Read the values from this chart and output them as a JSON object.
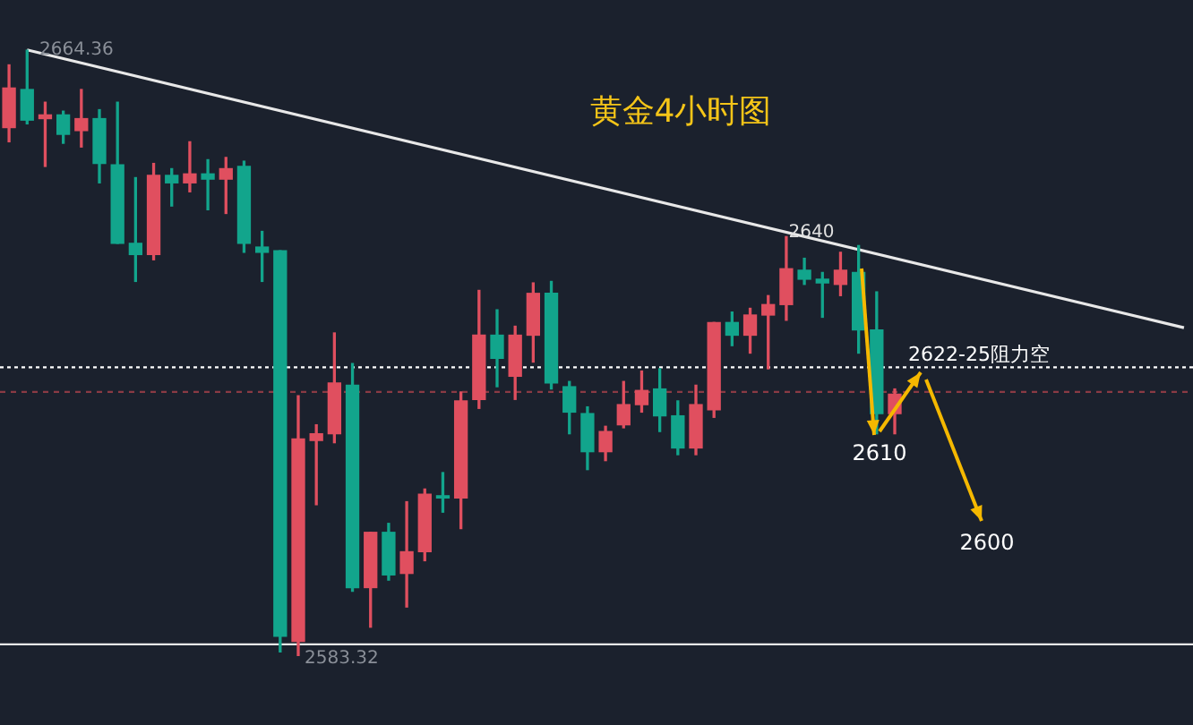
{
  "chart_data": {
    "type": "candlestick",
    "title": "黄金4小时图",
    "categories": [
      null,
      null,
      null,
      null,
      null,
      null,
      null,
      null,
      null,
      null,
      null,
      null,
      null,
      null,
      null,
      null,
      null,
      null,
      null,
      null,
      null,
      null,
      null,
      null,
      null,
      null,
      null,
      null,
      null,
      null,
      null,
      null,
      null,
      null,
      null,
      null,
      null,
      null,
      null,
      null,
      null,
      null,
      null,
      null,
      null,
      null,
      null,
      null,
      null,
      null,
      null,
      null,
      null,
      null,
      null,
      null,
      null,
      null,
      null,
      null,
      null,
      null,
      null,
      null,
      null,
      null
    ],
    "ohlc": [
      [
        2654.0,
        2662.4,
        2652.1,
        2659.3
      ],
      [
        2659.1,
        2664.36,
        2654.5,
        2655.0
      ],
      [
        2655.2,
        2657.4,
        2648.8,
        2655.7
      ],
      [
        2655.7,
        2656.2,
        2651.9,
        2653.1
      ],
      [
        2653.6,
        2659.1,
        2651.4,
        2655.2
      ],
      [
        2655.2,
        2656.4,
        2646.6,
        2649.2
      ],
      [
        2649.0,
        2657.4,
        2638.5,
        2638.5
      ],
      [
        2638.5,
        2647.3,
        2633.4,
        2637.0
      ],
      [
        2637.0,
        2649.2,
        2636.3,
        2647.6
      ],
      [
        2647.6,
        2648.5,
        2643.5,
        2646.6
      ],
      [
        2646.6,
        2652.1,
        2645.4,
        2647.8
      ],
      [
        2647.8,
        2649.7,
        2643.0,
        2647.1
      ],
      [
        2647.1,
        2650.0,
        2642.5,
        2648.5
      ],
      [
        2648.8,
        2649.5,
        2637.3,
        2638.5
      ],
      [
        2638.0,
        2640.1,
        2633.4,
        2637.3
      ],
      [
        2637.5,
        2637.5,
        2583.8,
        2585.9
      ],
      [
        2585.2,
        2618.1,
        2583.32,
        2612.3
      ],
      [
        2612.1,
        2614.2,
        2603.5,
        2613.0
      ],
      [
        2613.0,
        2626.5,
        2611.8,
        2619.8
      ],
      [
        2619.5,
        2622.4,
        2591.9,
        2592.4
      ],
      [
        2592.4,
        2599.8,
        2587.1,
        2599.8
      ],
      [
        2599.8,
        2601.0,
        2593.4,
        2594.1
      ],
      [
        2594.3,
        2603.9,
        2589.8,
        2597.2
      ],
      [
        2597.2,
        2605.6,
        2596.0,
        2604.9
      ],
      [
        2604.7,
        2607.8,
        2602.5,
        2604.4
      ],
      [
        2604.4,
        2618.6,
        2600.3,
        2617.4
      ],
      [
        2617.6,
        2632.2,
        2616.4,
        2626.2
      ],
      [
        2626.2,
        2629.6,
        2619.3,
        2623.1
      ],
      [
        2620.7,
        2627.4,
        2617.6,
        2626.2
      ],
      [
        2626.2,
        2633.2,
        2622.6,
        2631.8
      ],
      [
        2631.8,
        2633.4,
        2619.0,
        2619.8
      ],
      [
        2619.3,
        2620.0,
        2613.0,
        2615.9
      ],
      [
        2615.7,
        2616.6,
        2608.2,
        2610.6
      ],
      [
        2610.6,
        2614.0,
        2609.4,
        2613.3
      ],
      [
        2614.2,
        2620.0,
        2613.8,
        2616.9
      ],
      [
        2616.9,
        2621.4,
        2615.9,
        2618.8
      ],
      [
        2619.0,
        2621.7,
        2613.3,
        2615.4
      ],
      [
        2615.4,
        2617.4,
        2610.2,
        2611.1
      ],
      [
        2611.1,
        2619.5,
        2610.2,
        2616.9
      ],
      [
        2616.2,
        2627.9,
        2615.2,
        2627.9
      ],
      [
        2627.9,
        2629.3,
        2624.8,
        2626.2
      ],
      [
        2626.2,
        2629.8,
        2623.8,
        2628.9
      ],
      [
        2628.9,
        2631.5,
        2621.7,
        2630.3
      ],
      [
        2630.3,
        2639.4,
        2628.2,
        2635.1
      ],
      [
        2634.9,
        2636.5,
        2633.0,
        2633.7
      ],
      [
        2633.7,
        2634.6,
        2628.6,
        2633.2
      ],
      [
        2633.0,
        2637.3,
        2631.5,
        2634.9
      ],
      [
        2634.6,
        2638.2,
        2623.8,
        2626.9
      ],
      [
        2626.9,
        2632.0,
        2613.0,
        2615.7
      ],
      [
        2615.7,
        2619.0,
        2613.0,
        2618.3
      ],
      null,
      null,
      null,
      null,
      null,
      null,
      null,
      null,
      null,
      null,
      null,
      null,
      null,
      null,
      null,
      null
    ],
    "colors": [
      "#e04f5f",
      "#12a58c",
      "#e04f5f",
      "#12a58c",
      "#e04f5f",
      "#12a58c",
      "#12a58c",
      "#12a58c",
      "#e04f5f",
      "#12a58c",
      "#e04f5f",
      "#12a58c",
      "#e04f5f",
      "#12a58c",
      "#12a58c",
      "#12a58c",
      "#e04f5f",
      "#e04f5f",
      "#e04f5f",
      "#12a58c",
      "#e04f5f",
      "#12a58c",
      "#e04f5f",
      "#e04f5f",
      "#12a58c",
      "#e04f5f",
      "#e04f5f",
      "#12a58c",
      "#e04f5f",
      "#e04f5f",
      "#12a58c",
      "#12a58c",
      "#12a58c",
      "#e04f5f",
      "#e04f5f",
      "#e04f5f",
      "#12a58c",
      "#12a58c",
      "#e04f5f",
      "#e04f5f",
      "#12a58c",
      "#e04f5f",
      "#e04f5f",
      "#e04f5f",
      "#12a58c",
      "#12a58c",
      "#e04f5f",
      "#12a58c",
      "#12a58c",
      "#e04f5f",
      null,
      null,
      null,
      null,
      null,
      null,
      null,
      null,
      null,
      null,
      null,
      null,
      null,
      null,
      null,
      null
    ],
    "series": [
      {
        "type": "line",
        "color": "#e8e8e8",
        "values": [
          null,
          2664.4,
          null,
          null,
          null,
          null,
          null,
          null,
          null,
          null,
          null,
          null,
          null,
          null,
          null,
          null,
          null,
          null,
          null,
          null,
          null,
          null,
          null,
          null,
          null,
          null,
          null,
          null,
          null,
          null,
          null,
          null,
          null,
          null,
          null,
          null,
          null,
          null,
          null,
          null,
          null,
          null,
          null,
          null,
          null,
          null,
          null,
          null,
          null,
          null,
          null,
          null,
          null,
          null,
          null,
          null,
          null,
          null,
          null,
          null,
          null,
          null,
          null,
          null,
          null,
          2627.2
        ]
      }
    ],
    "ref_lines": [
      {
        "axis": "y",
        "value": 2621.9,
        "label": "2622-25阻力空",
        "color": "#ffffff",
        "line_style": "dotted"
      },
      {
        "axis": "y",
        "value": 2618.6,
        "color": "#8a3a44",
        "line_style": "dashed"
      },
      {
        "axis": "y",
        "value": 2584.8,
        "color": "#e8e8e8",
        "line_style": "solid"
      }
    ],
    "annotations": [
      "2664.36",
      "2583.32",
      {
        "text": "2640",
        "y": 2640
      },
      "2610",
      "2600"
    ]
  }
}
